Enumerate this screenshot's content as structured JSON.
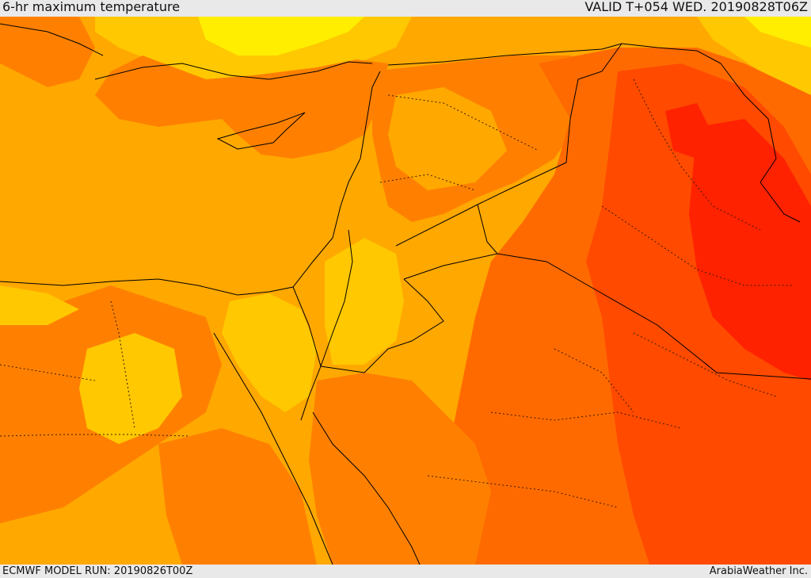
{
  "header": {
    "title": "6-hr maximum temperature",
    "valid": "VALID T+054 WED. 20190828T06Z"
  },
  "footer": {
    "model_run": "ECMWF MODEL RUN: 20190826T00Z",
    "credit": "ArabiaWeather Inc."
  },
  "colors": {
    "warm_orange": "#ffa800",
    "orange": "#ff8000",
    "dark_orange": "#ff6a00",
    "red_orange": "#ff4a00",
    "red": "#ff2200",
    "yellow_orange": "#ffc800",
    "yellow": "#ffee00",
    "border": "#000000"
  }
}
